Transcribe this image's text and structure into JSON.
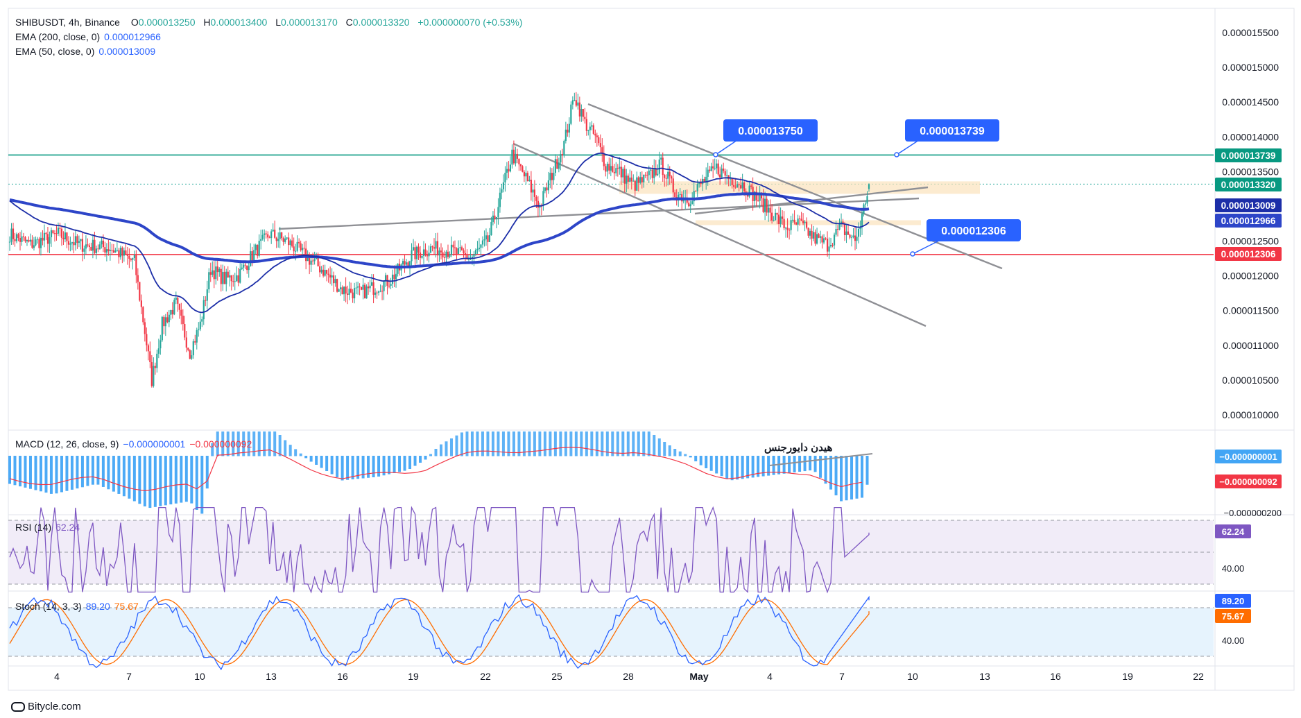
{
  "header": {
    "symbol": "SHIBUSDT, 4h, Binance",
    "o_label": "O",
    "o": "0.000013250",
    "h_label": "H",
    "h": "0.000013400",
    "l_label": "L",
    "l": "0.000013170",
    "c_label": "C",
    "c": "0.000013320",
    "change": "+0.000000070 (+0.53%)",
    "ema200_label": "EMA (200, close, 0)",
    "ema200": "0.000012966",
    "ema50_label": "EMA (50, close, 0)",
    "ema50": "0.000013009"
  },
  "macd": {
    "label": "MACD (12, 26, close, 9)",
    "v1": "−0.000000001",
    "v2": "−0.000000092",
    "annotation": "هیدن دایورجنس"
  },
  "rsi": {
    "label": "RSI (14)",
    "value": "62.24"
  },
  "stoch": {
    "label": "Stoch (14, 3, 3)",
    "k": "89.20",
    "d": "75.67"
  },
  "watermark": "Bitycle.com",
  "colors": {
    "up": "#26a69a",
    "down": "#f23645",
    "ema200": "#2d45c8",
    "ema50": "#1c2ea8",
    "resistance": "#089981",
    "support": "#f23645",
    "callout": "#2962ff"
  },
  "chart_data": [
    {
      "type": "candlestick",
      "title": "",
      "ylim": [
        9.9e-06,
        1.58e-05
      ],
      "y_ticks": [
        "0.000015500",
        "0.000015000",
        "0.000014500",
        "0.000014000",
        "0.000013500",
        "0.000013000",
        "0.000012500",
        "0.000012000",
        "0.000011500",
        "0.000011000",
        "0.000010500",
        "0.000010000"
      ],
      "x_ticks": [
        "4",
        "7",
        "10",
        "13",
        "16",
        "19",
        "22",
        "25",
        "28",
        "May",
        "4",
        "7",
        "10",
        "13",
        "16",
        "19",
        "22"
      ],
      "price_labels": [
        {
          "text": "0.000013739",
          "value": 1.3739e-05,
          "color": "#089981"
        },
        {
          "text": "0.000013320",
          "value": 1.332e-05,
          "color": "#089981"
        },
        {
          "text": "0.000013009",
          "value": 1.3009e-05,
          "color": "#1c2ea8"
        },
        {
          "text": "0.000012966",
          "value": 1.2966e-05,
          "color": "#2d45c8"
        },
        {
          "text": "0.000012306",
          "value": 1.2306e-05,
          "color": "#f23645"
        }
      ],
      "horizontal_lines": [
        {
          "name": "resistance",
          "value": 1.3739e-05,
          "color": "#089981"
        },
        {
          "name": "support",
          "value": 1.2306e-05,
          "color": "#f23645"
        }
      ],
      "callouts": [
        "0.000013750",
        "0.000013739",
        "0.000012306"
      ],
      "candles_summary": {
        "low_point": {
          "date": "7",
          "value": 1.03e-05
        },
        "high_point": {
          "date": "25",
          "value": 1.52e-05
        },
        "last": {
          "open": 1.325e-05,
          "high": 1.34e-05,
          "low": 1.317e-05,
          "close": 1.332e-05
        }
      },
      "ema200_last": 1.2966e-05,
      "ema50_last": 1.3009e-05
    },
    {
      "type": "bar",
      "name": "MACD histogram",
      "values_last": [
        -1e-09,
        -9.2e-08
      ],
      "y_tick": "−0.000000200"
    },
    {
      "type": "line",
      "name": "RSI (14)",
      "last": 62.24,
      "bands": [
        70,
        30
      ],
      "y_tick": "40.00"
    },
    {
      "type": "line",
      "name": "Stoch (14, 3, 3)",
      "k_last": 89.2,
      "d_last": 75.67,
      "bands": [
        80,
        20
      ],
      "y_tick": "40.00"
    }
  ]
}
